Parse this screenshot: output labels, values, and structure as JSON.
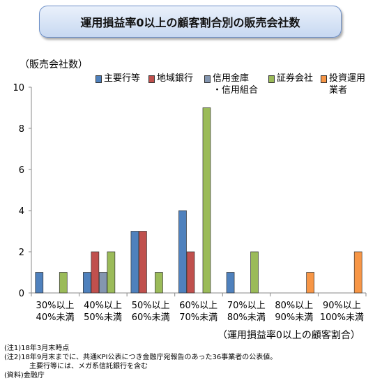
{
  "chart_data": {
    "type": "bar",
    "title": "運用損益率0以上の顧客割合別の販売会社数",
    "y_label": "（販売会社数）",
    "x_label": "（運用損益率0以上の顧客割合）",
    "categories": [
      "30%以上\n40%未満",
      "40%以上\n50%未満",
      "50%以上\n60%未満",
      "60%以上\n70%未満",
      "70%以上\n80%未満",
      "80%以上\n90%未満",
      "90%以上\n100%未満"
    ],
    "series": [
      {
        "name": "主要行等",
        "color": "#4f81bd",
        "values": [
          1,
          1,
          3,
          4,
          1,
          0,
          0
        ]
      },
      {
        "name": "地域銀行",
        "color": "#c0504d",
        "values": [
          0,
          2,
          3,
          2,
          0,
          0,
          0
        ]
      },
      {
        "name": "信用金庫\n・信用組合",
        "color": "#8496b0",
        "values": [
          0,
          1,
          0,
          0,
          0,
          0,
          0
        ]
      },
      {
        "name": "証券会社",
        "color": "#9bbb59",
        "values": [
          1,
          2,
          1,
          9,
          2,
          0,
          0
        ]
      },
      {
        "name": "投資運用\n業者",
        "color": "#f79646",
        "values": [
          0,
          0,
          0,
          0,
          0,
          1,
          2
        ]
      }
    ],
    "ylim": [
      0,
      10
    ],
    "yticks": [
      0,
      2,
      4,
      6,
      8,
      10
    ],
    "notes": [
      "(注1)18年3月末時点",
      "(注2)18年9月末までに、共通KPI公表につき金融庁宛報告のあった36事業者の公表値。",
      "主要行等には、メガ系信託銀行を含む",
      "(資料)金融庁"
    ]
  }
}
